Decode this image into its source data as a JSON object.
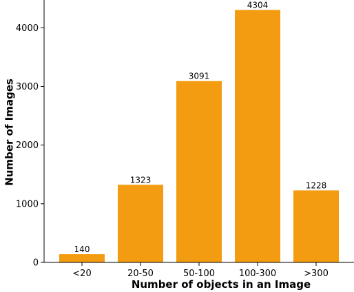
{
  "chart_data": {
    "type": "bar",
    "categories": [
      "<20",
      "20-50",
      "50-100",
      "100-300",
      ">300"
    ],
    "values": [
      140,
      1323,
      3091,
      4304,
      1228
    ],
    "data_labels": [
      "140",
      "1323",
      "3091",
      "4304",
      "1228"
    ],
    "xlabel": "Number of objects in an Image",
    "ylabel": "Number of Images",
    "ylim": [
      0,
      4450
    ],
    "yticks": [
      0,
      1000,
      2000,
      3000,
      4000
    ],
    "ytick_labels": [
      "0",
      "1000",
      "2000",
      "3000",
      "4000"
    ],
    "grid": false,
    "legend": "none",
    "bar_color": "#f39c12"
  }
}
